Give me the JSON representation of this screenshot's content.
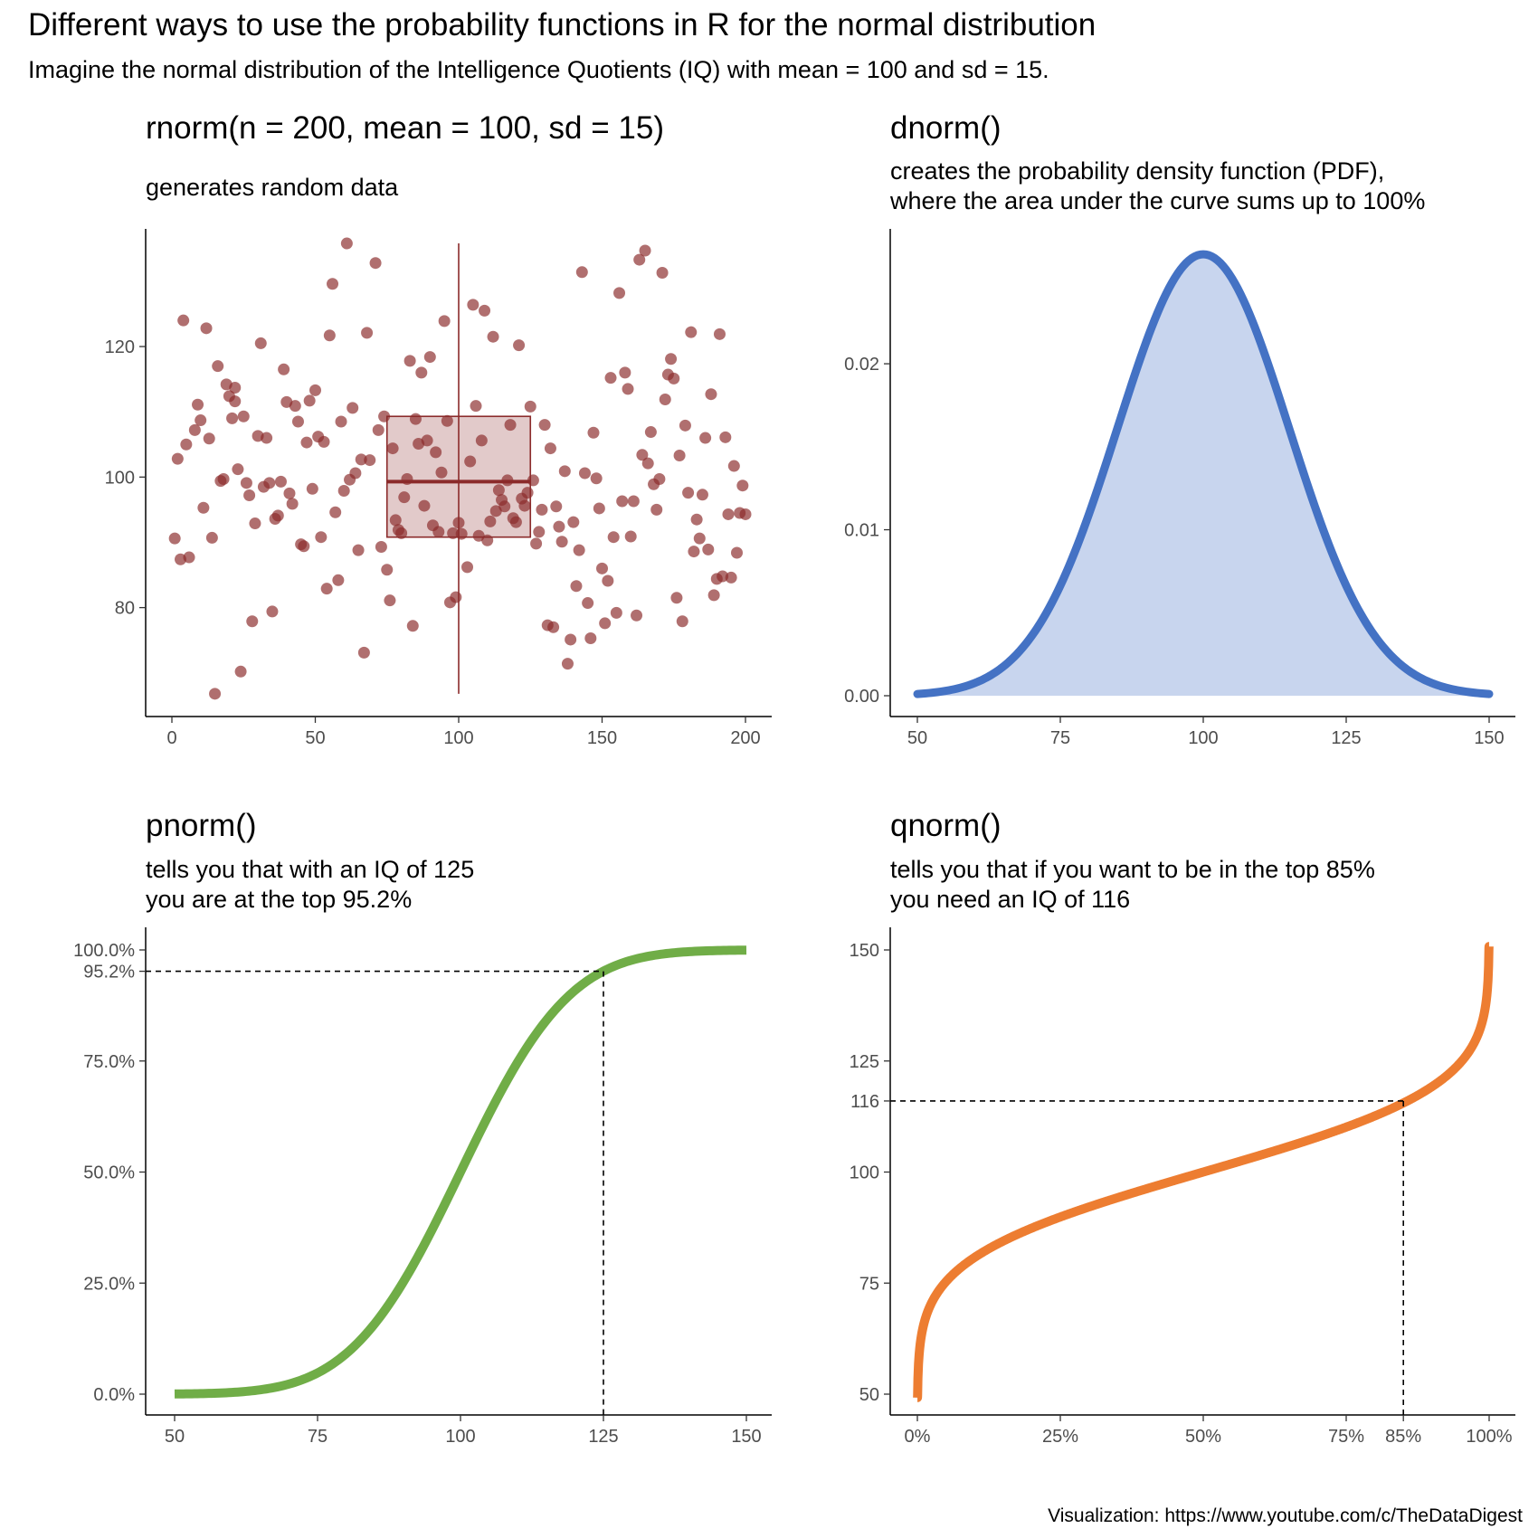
{
  "title": "Different ways to use the probability functions in R for the normal distribution",
  "subtitle": "Imagine the normal distribution of the Intelligence Quotients (IQ) with mean = 100 and sd = 15.",
  "caption": "Visualization: https://www.youtube.com/c/TheDataDigest",
  "panels": {
    "rnorm": {
      "title": "rnorm(n = 200, mean = 100, sd = 15)",
      "subtitle_lines": [
        "generates random data"
      ]
    },
    "dnorm": {
      "title": "dnorm()",
      "subtitle_lines": [
        "creates the probability density function (PDF),",
        "where the area under the curve sums up to 100%"
      ]
    },
    "pnorm": {
      "title": "pnorm()",
      "subtitle_lines": [
        "tells you that with an IQ of 125",
        "you are at the top 95.2%"
      ]
    },
    "qnorm": {
      "title": "qnorm()",
      "subtitle_lines": [
        "tells you that if you want to be in the top 85%",
        "you need an IQ of 116"
      ]
    }
  },
  "chart_data": [
    {
      "id": "rnorm",
      "type": "scatter",
      "title": "rnorm(n = 200, mean = 100, sd = 15)",
      "xlim": [
        0,
        200
      ],
      "ylim": [
        66.5,
        136.5
      ],
      "x_ticks": [
        0,
        50,
        100,
        150,
        200
      ],
      "x_tick_labels": [
        "0",
        "50",
        "100",
        "150",
        "200"
      ],
      "y_ticks": [
        80,
        100,
        120
      ],
      "y_tick_labels": [
        "80",
        "100",
        "120"
      ],
      "point_color": "#8b2b2b",
      "boxplot": {
        "x_center": 100,
        "x_range": [
          75,
          125
        ],
        "lower_whisker": 66.8,
        "q1": 90.8,
        "median": 99.3,
        "q3": 109.3,
        "upper_whisker": 135.8
      },
      "points": [
        [
          1,
          90.6
        ],
        [
          2,
          102.8
        ],
        [
          3,
          87.4
        ],
        [
          4,
          124.0
        ],
        [
          5,
          105.0
        ],
        [
          6,
          87.7
        ],
        [
          8,
          107.2
        ],
        [
          9,
          111.1
        ],
        [
          10,
          108.7
        ],
        [
          11,
          95.3
        ],
        [
          12,
          122.8
        ],
        [
          13,
          105.9
        ],
        [
          14,
          90.7
        ],
        [
          15,
          66.8
        ],
        [
          16,
          117.0
        ],
        [
          17,
          99.4
        ],
        [
          18,
          99.7
        ],
        [
          19,
          114.2
        ],
        [
          20,
          112.4
        ],
        [
          21,
          109.0
        ],
        [
          22,
          113.7
        ],
        [
          22,
          111.6
        ],
        [
          23,
          101.2
        ],
        [
          24,
          70.2
        ],
        [
          25,
          109.3
        ],
        [
          26,
          99.1
        ],
        [
          27,
          97.2
        ],
        [
          28,
          77.9
        ],
        [
          29,
          92.9
        ],
        [
          30,
          106.3
        ],
        [
          31,
          120.5
        ],
        [
          32,
          98.5
        ],
        [
          33,
          106.0
        ],
        [
          34,
          99.1
        ],
        [
          35,
          79.4
        ],
        [
          36,
          93.6
        ],
        [
          37,
          94.1
        ],
        [
          38,
          99.3
        ],
        [
          39,
          116.5
        ],
        [
          40,
          111.5
        ],
        [
          41,
          97.5
        ],
        [
          42,
          95.9
        ],
        [
          43,
          110.9
        ],
        [
          44,
          108.5
        ],
        [
          45,
          89.7
        ],
        [
          46,
          89.4
        ],
        [
          47,
          105.3
        ],
        [
          48,
          111.7
        ],
        [
          49,
          98.2
        ],
        [
          50,
          113.3
        ],
        [
          51,
          106.2
        ],
        [
          52,
          90.8
        ],
        [
          53,
          105.4
        ],
        [
          54,
          82.9
        ],
        [
          55,
          121.7
        ],
        [
          56,
          129.6
        ],
        [
          57,
          94.6
        ],
        [
          58,
          84.2
        ],
        [
          59,
          108.5
        ],
        [
          60,
          97.9
        ],
        [
          61,
          135.8
        ],
        [
          62,
          99.6
        ],
        [
          63,
          110.6
        ],
        [
          64,
          100.6
        ],
        [
          65,
          88.8
        ],
        [
          66,
          102.7
        ],
        [
          67,
          73.1
        ],
        [
          68,
          122.1
        ],
        [
          69,
          102.6
        ],
        [
          71,
          132.8
        ],
        [
          72,
          107.2
        ],
        [
          73,
          89.3
        ],
        [
          74,
          109.3
        ],
        [
          75,
          85.8
        ],
        [
          76,
          81.1
        ],
        [
          77,
          104.4
        ],
        [
          78,
          93.4
        ],
        [
          79,
          91.9
        ],
        [
          80,
          91.4
        ],
        [
          81,
          96.9
        ],
        [
          82,
          99.7
        ],
        [
          83,
          117.8
        ],
        [
          84,
          77.2
        ],
        [
          85,
          108.9
        ],
        [
          86,
          105.1
        ],
        [
          87,
          116.0
        ],
        [
          88,
          95.6
        ],
        [
          89,
          105.6
        ],
        [
          90,
          118.4
        ],
        [
          91,
          92.6
        ],
        [
          92,
          103.8
        ],
        [
          93,
          91.6
        ],
        [
          94,
          100.7
        ],
        [
          95,
          123.9
        ],
        [
          96,
          108.6
        ],
        [
          97,
          80.8
        ],
        [
          98,
          91.4
        ],
        [
          99,
          81.6
        ],
        [
          100,
          93.0
        ],
        [
          101,
          91.3
        ],
        [
          103,
          86.2
        ],
        [
          104,
          102.4
        ],
        [
          105,
          126.4
        ],
        [
          106,
          110.9
        ],
        [
          107,
          91.0
        ],
        [
          108,
          105.6
        ],
        [
          109,
          125.5
        ],
        [
          110,
          90.3
        ],
        [
          111,
          93.2
        ],
        [
          112,
          121.5
        ],
        [
          113,
          94.8
        ],
        [
          114,
          98.0
        ],
        [
          115,
          96.5
        ],
        [
          116,
          95.5
        ],
        [
          117,
          99.5
        ],
        [
          118,
          108.0
        ],
        [
          119,
          93.7
        ],
        [
          120,
          93.1
        ],
        [
          121,
          120.2
        ],
        [
          122,
          96.7
        ],
        [
          123,
          95.6
        ],
        [
          124,
          97.6
        ],
        [
          125,
          110.8
        ],
        [
          126,
          99.5
        ],
        [
          127,
          89.8
        ],
        [
          128,
          91.6
        ],
        [
          129,
          95.0
        ],
        [
          130,
          108.0
        ],
        [
          131,
          77.3
        ],
        [
          132,
          104.4
        ],
        [
          133,
          77.0
        ],
        [
          134,
          95.5
        ],
        [
          135,
          92.4
        ],
        [
          136,
          90.1
        ],
        [
          137,
          100.9
        ],
        [
          138,
          71.4
        ],
        [
          139,
          75.1
        ],
        [
          140,
          93.1
        ],
        [
          141,
          83.3
        ],
        [
          142,
          88.8
        ],
        [
          143,
          131.4
        ],
        [
          144,
          100.6
        ],
        [
          145,
          80.7
        ],
        [
          146,
          75.3
        ],
        [
          147,
          106.8
        ],
        [
          148,
          99.8
        ],
        [
          149,
          95.2
        ],
        [
          150,
          86.0
        ],
        [
          151,
          77.6
        ],
        [
          152,
          84.1
        ],
        [
          153,
          115.2
        ],
        [
          154,
          90.8
        ],
        [
          155,
          79.2
        ],
        [
          156,
          128.2
        ],
        [
          157,
          96.3
        ],
        [
          158,
          116.0
        ],
        [
          159,
          113.5
        ],
        [
          160,
          90.9
        ],
        [
          161,
          96.3
        ],
        [
          162,
          78.8
        ],
        [
          163,
          133.3
        ],
        [
          164,
          103.4
        ],
        [
          165,
          134.7
        ],
        [
          166,
          102.1
        ],
        [
          167,
          106.9
        ],
        [
          168,
          98.9
        ],
        [
          169,
          95.0
        ],
        [
          170,
          99.7
        ],
        [
          171,
          131.3
        ],
        [
          172,
          111.9
        ],
        [
          173,
          115.7
        ],
        [
          174,
          118.1
        ],
        [
          175,
          115.1
        ],
        [
          176,
          81.5
        ],
        [
          177,
          103.3
        ],
        [
          178,
          77.9
        ],
        [
          179,
          107.9
        ],
        [
          180,
          97.6
        ],
        [
          181,
          122.2
        ],
        [
          182,
          88.6
        ],
        [
          183,
          93.5
        ],
        [
          184,
          90.6
        ],
        [
          185,
          97.3
        ],
        [
          186,
          106.0
        ],
        [
          187,
          88.9
        ],
        [
          188,
          112.7
        ],
        [
          189,
          81.9
        ],
        [
          190,
          84.4
        ],
        [
          191,
          121.9
        ],
        [
          192,
          84.8
        ],
        [
          193,
          106.1
        ],
        [
          194,
          94.3
        ],
        [
          195,
          84.6
        ],
        [
          196,
          101.7
        ],
        [
          197,
          88.4
        ],
        [
          198,
          94.5
        ],
        [
          199,
          98.7
        ],
        [
          200,
          94.3
        ]
      ]
    },
    {
      "id": "dnorm",
      "type": "area",
      "title": "dnorm()",
      "xlim": [
        50,
        150
      ],
      "ylim": [
        0,
        0.0266
      ],
      "x_ticks": [
        50,
        75,
        100,
        125,
        150
      ],
      "x_tick_labels": [
        "50",
        "75",
        "100",
        "125",
        "150"
      ],
      "y_ticks": [
        0,
        0.01,
        0.02
      ],
      "y_tick_labels": [
        "0.00",
        "0.01",
        "0.02"
      ],
      "mean": 100,
      "sd": 15,
      "line_color": "#4472c4",
      "fill_color": "#c8d5ee"
    },
    {
      "id": "pnorm",
      "type": "line",
      "title": "pnorm()",
      "xlim": [
        50,
        150
      ],
      "ylim": [
        0,
        1
      ],
      "x_ticks": [
        50,
        75,
        100,
        125,
        150
      ],
      "x_tick_labels": [
        "50",
        "75",
        "100",
        "125",
        "150"
      ],
      "y_ticks": [
        0,
        0.25,
        0.5,
        0.75,
        0.952,
        1
      ],
      "y_tick_labels": [
        "0.0%",
        "25.0%",
        "50.0%",
        "75.0%",
        "95.2%",
        "100.0%"
      ],
      "mean": 100,
      "sd": 15,
      "line_color": "#70ad47",
      "reference": {
        "x": 125,
        "y": 0.952
      }
    },
    {
      "id": "qnorm",
      "type": "line",
      "title": "qnorm()",
      "xlim": [
        0,
        1
      ],
      "ylim": [
        50,
        150
      ],
      "x_ticks": [
        0,
        0.25,
        0.5,
        0.75,
        0.85,
        1
      ],
      "x_tick_labels": [
        "0%",
        "25%",
        "50%",
        "75%",
        "85%",
        "100%"
      ],
      "y_ticks": [
        50,
        75,
        100,
        116,
        125,
        150
      ],
      "y_tick_labels": [
        "50",
        "75",
        "100",
        "116",
        "125",
        "150"
      ],
      "mean": 100,
      "sd": 15,
      "line_color": "#ed7d31",
      "reference": {
        "x": 0.85,
        "y": 116
      }
    }
  ]
}
